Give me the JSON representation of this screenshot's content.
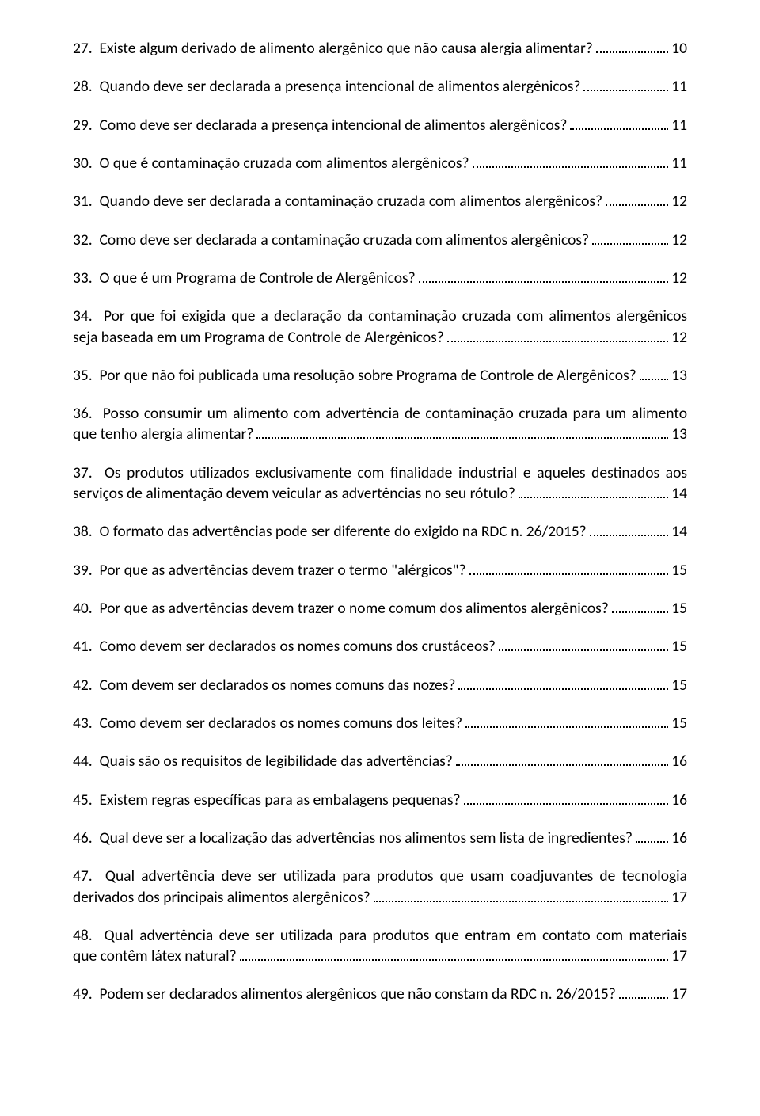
{
  "text_color": "#000000",
  "background_color": "#ffffff",
  "font_family": "Calibri, sans-serif",
  "font_size_pt": 12,
  "entries": [
    {
      "num": "27.",
      "text": "Existe algum derivado de alimento alergênico que não causa alergia alimentar?",
      "page": "10",
      "multiline": false
    },
    {
      "num": "28.",
      "text": "Quando deve ser declarada a presença intencional de alimentos alergênicos?",
      "page": "11",
      "multiline": false
    },
    {
      "num": "29.",
      "text": "Como deve ser declarada a presença intencional de alimentos alergênicos?",
      "page": "11",
      "multiline": false
    },
    {
      "num": "30.",
      "text": "O que é contaminação cruzada com alimentos alergênicos?",
      "page": "11",
      "multiline": false
    },
    {
      "num": "31.",
      "text": "Quando deve ser declarada a contaminação cruzada com alimentos alergênicos?",
      "page": "12",
      "multiline": false
    },
    {
      "num": "32.",
      "text": "Como deve ser declarada a contaminação cruzada com alimentos alergênicos?",
      "page": "12",
      "multiline": false
    },
    {
      "num": "33.",
      "text": "O que é um Programa de Controle de Alergênicos?",
      "page": "12",
      "multiline": false
    },
    {
      "num": "34.",
      "text_line1": "Por que foi exigida que a declaração da contaminação cruzada com alimentos alergênicos",
      "text_line2": "seja baseada em um Programa de Controle de Alergênicos?",
      "page": "12",
      "multiline": true
    },
    {
      "num": "35.",
      "text": "Por que não foi publicada uma resolução sobre Programa de Controle de Alergênicos?",
      "page": "13",
      "multiline": false
    },
    {
      "num": "36.",
      "text_line1": "Posso consumir um alimento com advertência de contaminação cruzada para um alimento",
      "text_line2": "que tenho alergia alimentar?",
      "page": "13",
      "multiline": true
    },
    {
      "num": "37.",
      "text_line1": "Os produtos utilizados exclusivamente com finalidade industrial e aqueles destinados aos",
      "text_line2": "serviços de alimentação devem veicular as advertências no seu rótulo?",
      "page": "14",
      "multiline": true
    },
    {
      "num": "38.",
      "text": "O formato das advertências pode ser diferente do exigido na RDC n. 26/2015?",
      "page": "14",
      "multiline": false
    },
    {
      "num": "39.",
      "text": "Por que as advertências devem trazer o termo \"alérgicos\"?",
      "page": "15",
      "multiline": false
    },
    {
      "num": "40.",
      "text": "Por que as advertências devem trazer o nome comum dos alimentos alergênicos?",
      "page": "15",
      "multiline": false
    },
    {
      "num": "41.",
      "text": "Como devem ser declarados os nomes comuns dos crustáceos?",
      "page": "15",
      "multiline": false
    },
    {
      "num": "42.",
      "text": "Com devem ser declarados os nomes comuns das nozes?",
      "page": "15",
      "multiline": false
    },
    {
      "num": "43.",
      "text": "Como devem ser declarados os nomes comuns dos leites?",
      "page": "15",
      "multiline": false
    },
    {
      "num": "44.",
      "text": "Quais são os requisitos de legibilidade das advertências?",
      "page": "16",
      "multiline": false
    },
    {
      "num": "45.",
      "text": "Existem regras específicas para as embalagens pequenas?",
      "page": "16",
      "multiline": false
    },
    {
      "num": "46.",
      "text": "Qual deve ser a localização das advertências nos alimentos sem lista de ingredientes?",
      "page": "16",
      "multiline": false
    },
    {
      "num": "47.",
      "text_line1": "Qual advertência deve ser utilizada para produtos que usam coadjuvantes de tecnologia",
      "text_line2": "derivados dos principais alimentos alergênicos?",
      "page": "17",
      "multiline": true
    },
    {
      "num": "48.",
      "text_line1": "Qual advertência deve ser utilizada para produtos que entram em contato com materiais",
      "text_line2": "que contêm látex natural?",
      "page": "17",
      "multiline": true
    },
    {
      "num": "49.",
      "text": "Podem ser declarados alimentos alergênicos que não constam da RDC n. 26/2015?",
      "page": "17",
      "multiline": false
    }
  ]
}
